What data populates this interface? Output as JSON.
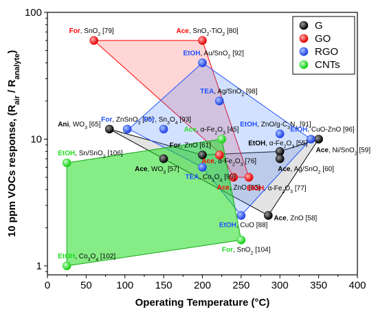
{
  "chart_data": {
    "type": "scatter",
    "x_axis": {
      "label": "Operating Temperature (°C)",
      "range": [
        0,
        400
      ],
      "ticks": [
        "0",
        "50",
        "100",
        "150",
        "200",
        "250",
        "300",
        "350",
        "400"
      ],
      "tick_values": [
        0,
        50,
        100,
        150,
        200,
        250,
        300,
        350,
        400
      ]
    },
    "y_axis": {
      "label": "10 ppm VOCs response, (R",
      "label_sub1": "air",
      "label_mid": " / R",
      "label_sub2": "analyte",
      "label_end": ")",
      "scale": "log",
      "range": [
        0.85,
        100
      ],
      "ticks": [
        "1",
        "10",
        "100"
      ],
      "tick_values": [
        1,
        10,
        100
      ]
    },
    "legend": {
      "position": "top-right",
      "entries": [
        {
          "key": "G",
          "label": "G",
          "color": "#000000"
        },
        {
          "key": "GO",
          "label": "GO",
          "color": "#ff0000"
        },
        {
          "key": "RGO",
          "label": "RGO",
          "color": "#1f4fff"
        },
        {
          "key": "CNTs",
          "label": "CNTs",
          "color": "#22dd22"
        }
      ]
    },
    "regions": [
      {
        "group": "G",
        "fill": "#808080",
        "stroke": "#000000",
        "points": [
          [
            80,
            12
          ],
          [
            200,
            7.5
          ],
          [
            300,
            8
          ],
          [
            350,
            10
          ],
          [
            285,
            2.5
          ],
          [
            150,
            7
          ]
        ]
      },
      {
        "group": "GO",
        "fill": "#ff4444",
        "stroke": "#ff0000",
        "points": [
          [
            60,
            60
          ],
          [
            200,
            60
          ],
          [
            260,
            5
          ],
          [
            240,
            5
          ],
          [
            225,
            7.5
          ]
        ]
      },
      {
        "group": "RGO",
        "fill": "#3377ff",
        "stroke": "#1f4fff",
        "points": [
          [
            200,
            40
          ],
          [
            340,
            10
          ],
          [
            250,
            2.5
          ],
          [
            200,
            6
          ],
          [
            105,
            12
          ]
        ]
      },
      {
        "group": "CNTs",
        "fill": "#22dd22",
        "stroke": "#11aa11",
        "points": [
          [
            25,
            6.5
          ],
          [
            225,
            10
          ],
          [
            250,
            1.6
          ],
          [
            25,
            1
          ]
        ]
      }
    ],
    "series": [
      {
        "name": "G",
        "points": [
          {
            "x": 80,
            "y": 12,
            "solvent": "Ani",
            "label": ", WO",
            "sub": "3",
            "ref": " [65]"
          },
          {
            "x": 150,
            "y": 7,
            "solvent": "Ace",
            "label": ", WO",
            "sub": "3",
            "ref": " [57]"
          },
          {
            "x": 200,
            "y": 7.5,
            "solvent": "For",
            "label": ", ZnO",
            "sub": "",
            "ref": " [61]"
          },
          {
            "x": 300,
            "y": 8,
            "solvent": "EtOH",
            "label": ", α-Fe",
            "sub": "2",
            "label2": "O",
            "sub2": "3",
            "ref": " [55]"
          },
          {
            "x": 300,
            "y": 7,
            "solvent": "Ace",
            "label": ", Ag/SnO",
            "sub": "2",
            "ref": " [60]"
          },
          {
            "x": 350,
            "y": 10,
            "solvent": "Ace",
            "label": ", Ni/SnO",
            "sub": "2",
            "ref": " [59]"
          },
          {
            "x": 285,
            "y": 2.5,
            "solvent": "Ace",
            "label": ", ZnO",
            "sub": "",
            "ref": " [58]"
          }
        ]
      },
      {
        "name": "GO",
        "points": [
          {
            "x": 60,
            "y": 60,
            "solvent": "For",
            "label": ", SnO",
            "sub": "2",
            "ref": " [79]"
          },
          {
            "x": 200,
            "y": 60,
            "solvent": "Ace",
            "label": ", SnO",
            "sub": "2",
            "label2": "-TiO",
            "sub2": "2",
            "ref": " [80]"
          },
          {
            "x": 222,
            "y": 7.5,
            "solvent": "Ace",
            "label": ", α-Fe",
            "sub": "2",
            "label2": "O",
            "sub2": "3",
            "ref": " [76]"
          },
          {
            "x": 240,
            "y": 5,
            "solvent": "Ace",
            "label": ", ZnO",
            "sub": "",
            "ref": " [83]"
          },
          {
            "x": 260,
            "y": 5,
            "solvent": "EtOH",
            "label": ", α-Fe",
            "sub": "2",
            "label2": "O",
            "sub2": "3",
            "ref": " [77]"
          }
        ]
      },
      {
        "name": "RGO",
        "points": [
          {
            "x": 200,
            "y": 40,
            "solvent": "EtOH",
            "label": ", Au/SnO",
            "sub": "2",
            "ref": " [92]"
          },
          {
            "x": 222,
            "y": 20,
            "solvent": "TEA",
            "label": ", Ag/SnO",
            "sub": "2",
            "ref": " [98]"
          },
          {
            "x": 103,
            "y": 12,
            "solvent": "For",
            "label": ", ZnSnO",
            "sub": "3",
            "ref": " [95]"
          },
          {
            "x": 150,
            "y": 12,
            "solvent": "For",
            "label": ", Sn",
            "sub": "3",
            "label2": "O",
            "sub2": "4",
            "ref": " [93]"
          },
          {
            "x": 300,
            "y": 11,
            "solvent": "EtOH",
            "label": ", ZnO/g-C",
            "sub": "3",
            "label2": "N",
            "sub2": "4",
            "ref": " [91]"
          },
          {
            "x": 340,
            "y": 10,
            "solvent": "EtOH",
            "label": ", CuO-ZnO",
            "sub": "",
            "ref": " [96]"
          },
          {
            "x": 200,
            "y": 6,
            "solvent": "TEA",
            "label": ", Co",
            "sub": "3",
            "label2": "O",
            "sub2": "4",
            "ref": " [99]"
          },
          {
            "x": 250,
            "y": 2.5,
            "solvent": "EtOH",
            "label": ", CuO",
            "sub": "",
            "ref": " [88]"
          }
        ]
      },
      {
        "name": "CNTs",
        "points": [
          {
            "x": 25,
            "y": 6.5,
            "solvent": "EtOH",
            "label": ", Sn/SnO",
            "sub": "2",
            "ref": " [106]"
          },
          {
            "x": 225,
            "y": 10,
            "solvent": "Ace",
            "label": ", α-Fe",
            "sub": "2",
            "label2": "O",
            "sub2": "3",
            "ref": " [45]"
          },
          {
            "x": 250,
            "y": 1.6,
            "solvent": "For",
            "label": ", SnO",
            "sub": "2",
            "ref": " [104]"
          },
          {
            "x": 25,
            "y": 1,
            "solvent": "EtOH",
            "label": ", Co",
            "sub": "3",
            "label2": "O",
            "sub2": "4",
            "ref": " [102]"
          }
        ]
      }
    ]
  }
}
